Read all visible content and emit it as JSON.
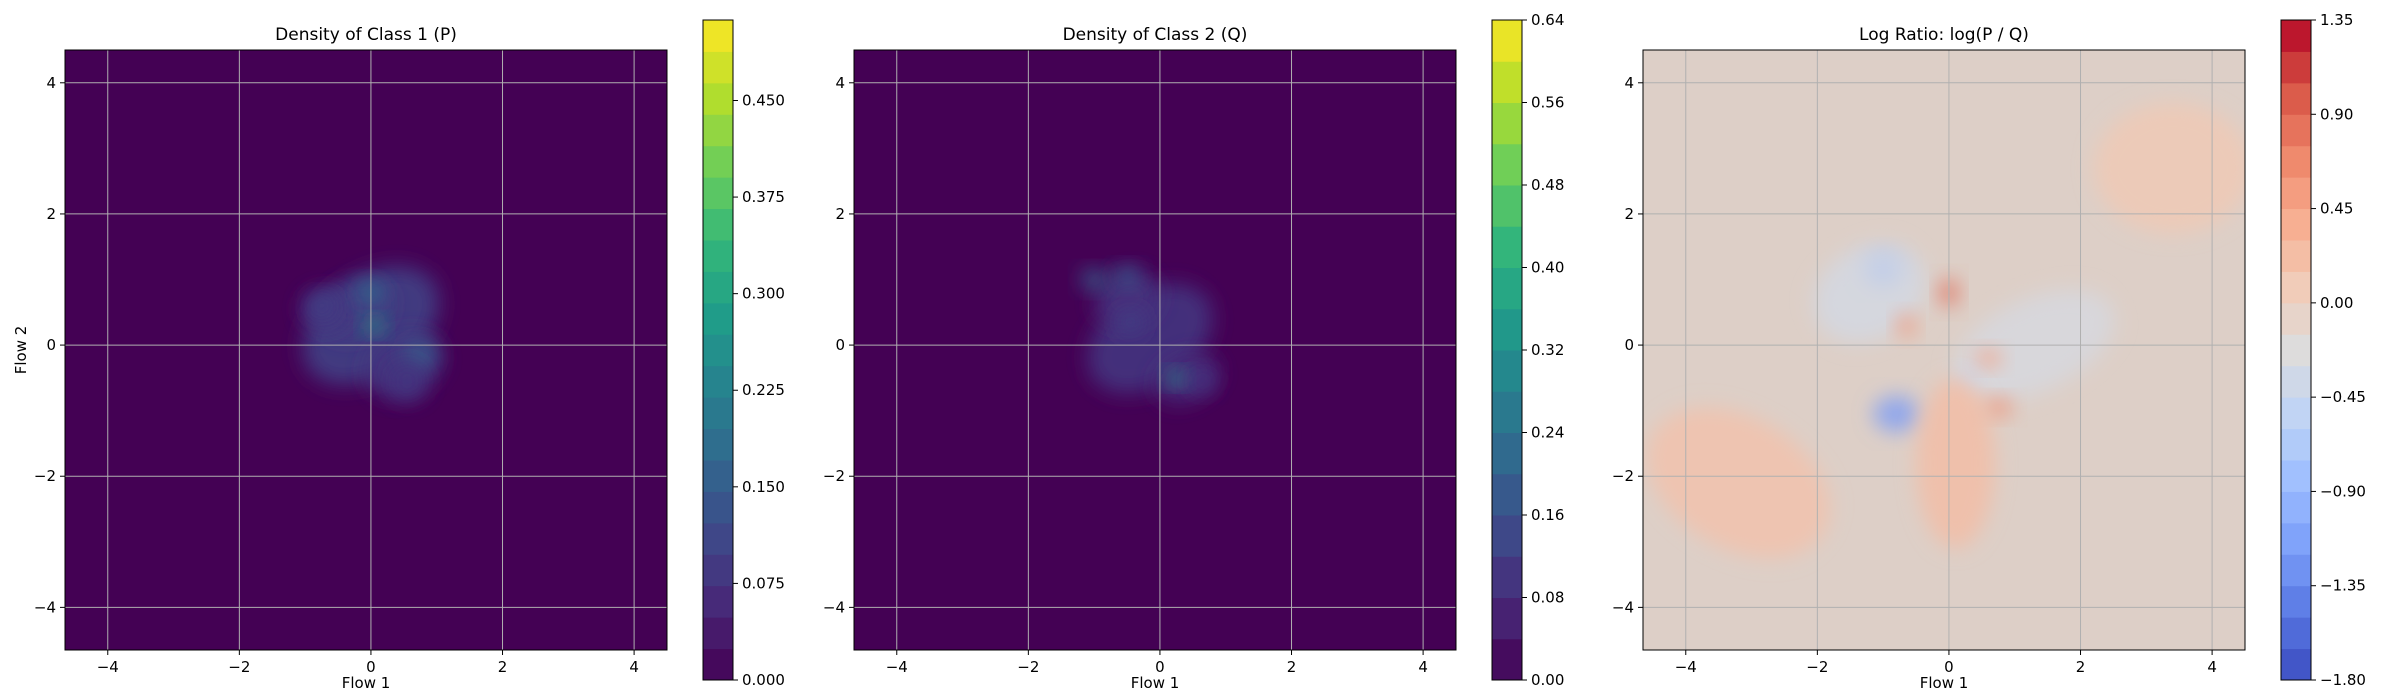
{
  "chart_data": [
    {
      "type": "heatmap",
      "title": "Density of Class 1 (P)",
      "xlabel": "Flow 1",
      "ylabel": "Flow 2",
      "xlim": [
        -4.65,
        4.5
      ],
      "ylim": [
        -4.65,
        4.5
      ],
      "xticks": [
        -4,
        -2,
        0,
        2,
        4
      ],
      "yticks": [
        -4,
        -2,
        0,
        2,
        4
      ],
      "grid": true,
      "colormap": "viridis",
      "colorbar": {
        "range": [
          0.0,
          0.5125
        ],
        "ticks": [
          0.0,
          0.075,
          0.15,
          0.225,
          0.3,
          0.375,
          0.45
        ],
        "tick_labels": [
          "0.000",
          "0.075",
          "0.150",
          "0.225",
          "0.300",
          "0.375",
          "0.450"
        ],
        "levels": 21
      },
      "base_color": "#440154",
      "blobs": [
        {
          "x": 0.0,
          "y": 0.3,
          "sx": 1.15,
          "sy": 0.75,
          "rot": -35,
          "a": 0.1
        },
        {
          "x": -0.25,
          "y": 0.55,
          "sx": 0.55,
          "sy": 0.4,
          "rot": -20,
          "a": 0.09
        },
        {
          "x": 0.5,
          "y": -0.3,
          "sx": 0.6,
          "sy": 0.45,
          "rot": -30,
          "a": 0.08
        },
        {
          "x": -0.7,
          "y": 0.55,
          "sx": 0.35,
          "sy": 0.3,
          "rot": 0,
          "a": 0.08
        },
        {
          "x": 0.05,
          "y": 0.3,
          "sx": 0.16,
          "sy": 0.12,
          "rot": 0,
          "a": 0.28
        },
        {
          "x": 0.0,
          "y": 0.8,
          "sx": 0.2,
          "sy": 0.18,
          "rot": 0,
          "a": 0.18
        },
        {
          "x": 0.75,
          "y": -0.15,
          "sx": 0.26,
          "sy": 0.22,
          "rot": 0,
          "a": 0.15
        },
        {
          "x": -0.75,
          "y": 0.6,
          "sx": 0.2,
          "sy": 0.18,
          "rot": 0,
          "a": 0.1
        },
        {
          "x": 0.55,
          "y": -0.55,
          "sx": 0.3,
          "sy": 0.3,
          "rot": 0,
          "a": 0.08
        }
      ]
    },
    {
      "type": "heatmap",
      "title": "Density of Class 2 (Q)",
      "xlabel": "Flow 1",
      "ylabel": "",
      "xlim": [
        -4.65,
        4.5
      ],
      "ylim": [
        -4.65,
        4.5
      ],
      "xticks": [
        -4,
        -2,
        0,
        2,
        4
      ],
      "yticks": [
        -4,
        -2,
        0,
        2,
        4
      ],
      "grid": true,
      "colormap": "viridis",
      "colorbar": {
        "range": [
          0.0,
          0.64
        ],
        "ticks": [
          0.0,
          0.08,
          0.16,
          0.24,
          0.32,
          0.4,
          0.48,
          0.56,
          0.64
        ],
        "tick_labels": [
          "0.00",
          "0.08",
          "0.16",
          "0.24",
          "0.32",
          "0.40",
          "0.48",
          "0.56",
          "0.64"
        ],
        "levels": 16
      },
      "base_color": "#440154",
      "blobs": [
        {
          "x": -0.15,
          "y": 0.1,
          "sx": 1.05,
          "sy": 0.7,
          "rot": -35,
          "a": 0.1
        },
        {
          "x": -0.5,
          "y": 0.7,
          "sx": 0.5,
          "sy": 0.4,
          "rot": -20,
          "a": 0.09
        },
        {
          "x": 0.4,
          "y": -0.5,
          "sx": 0.5,
          "sy": 0.35,
          "rot": -25,
          "a": 0.08
        },
        {
          "x": 0.25,
          "y": -0.5,
          "sx": 0.15,
          "sy": 0.12,
          "rot": 0,
          "a": 0.32
        },
        {
          "x": -1.0,
          "y": 1.0,
          "sx": 0.2,
          "sy": 0.16,
          "rot": 0,
          "a": 0.2
        },
        {
          "x": -0.5,
          "y": 1.05,
          "sx": 0.2,
          "sy": 0.16,
          "rot": 0,
          "a": 0.18
        },
        {
          "x": -0.45,
          "y": 0.35,
          "sx": 0.2,
          "sy": 0.18,
          "rot": 0,
          "a": 0.12
        },
        {
          "x": 0.65,
          "y": -0.55,
          "sx": 0.2,
          "sy": 0.18,
          "rot": 0,
          "a": 0.1
        }
      ]
    },
    {
      "type": "heatmap",
      "title": "Log Ratio: log(P / Q)",
      "xlabel": "Flow 1",
      "ylabel": "",
      "xlim": [
        -4.65,
        4.5
      ],
      "ylim": [
        -4.65,
        4.5
      ],
      "xticks": [
        -4,
        -2,
        0,
        2,
        4
      ],
      "yticks": [
        -4,
        -2,
        0,
        2,
        4
      ],
      "grid": true,
      "colormap": "coolwarm",
      "colorbar": {
        "range": [
          -1.8,
          1.35
        ],
        "ticks": [
          -1.8,
          -1.35,
          -0.9,
          -0.45,
          0.0,
          0.45,
          0.9,
          1.35
        ],
        "tick_labels": [
          "−1.80",
          "−1.35",
          "−0.90",
          "−0.45",
          "0.00",
          "0.45",
          "0.90",
          "1.35"
        ],
        "levels": 21
      },
      "base_color": "#ddcfc7",
      "blobs": [
        {
          "x": -1.0,
          "y": 1.15,
          "sx": 0.3,
          "sy": 0.25,
          "rot": 0,
          "a": -1.1
        },
        {
          "x": -0.8,
          "y": -1.05,
          "sx": 0.35,
          "sy": 0.28,
          "rot": 0,
          "a": -1.2
        },
        {
          "x": -1.2,
          "y": 0.8,
          "sx": 0.9,
          "sy": 0.7,
          "rot": -30,
          "a": -0.35
        },
        {
          "x": 1.3,
          "y": 0.0,
          "sx": 1.3,
          "sy": 0.7,
          "rot": -25,
          "a": -0.3
        },
        {
          "x": 0.3,
          "y": -0.5,
          "sx": 0.15,
          "sy": 0.15,
          "rot": 0,
          "a": -0.5
        },
        {
          "x": 0.0,
          "y": 0.8,
          "sx": 0.15,
          "sy": 0.22,
          "rot": 0,
          "a": 0.9
        },
        {
          "x": -0.65,
          "y": 0.3,
          "sx": 0.15,
          "sy": 0.18,
          "rot": 0,
          "a": 0.6
        },
        {
          "x": 0.75,
          "y": -0.95,
          "sx": 0.22,
          "sy": 0.15,
          "rot": 0,
          "a": 0.65
        },
        {
          "x": 0.6,
          "y": -0.2,
          "sx": 0.2,
          "sy": 0.15,
          "rot": 0,
          "a": 0.5
        },
        {
          "x": 0.1,
          "y": -1.8,
          "sx": 0.6,
          "sy": 1.3,
          "rot": 0,
          "a": 0.25
        },
        {
          "x": -3.2,
          "y": -2.1,
          "sx": 1.5,
          "sy": 1.0,
          "rot": 30,
          "a": 0.2
        },
        {
          "x": 3.4,
          "y": 2.7,
          "sx": 1.2,
          "sy": 1.0,
          "rot": 0,
          "a": 0.12
        }
      ]
    }
  ]
}
